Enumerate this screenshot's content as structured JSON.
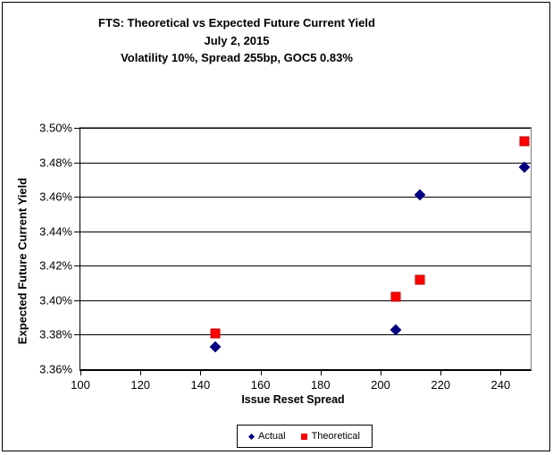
{
  "window": {
    "background": "#FFFFFF",
    "border_color": "#000000"
  },
  "chart_data": {
    "type": "scatter",
    "title": "FTS: Theoretical vs Expected Future Current Yield",
    "subtitle1": "July 2, 2015",
    "subtitle2": "Volatility 10%, Spread 255bp, GOC5 0.83%",
    "xlabel": "Issue Reset Spread",
    "ylabel": "Expected Future Current Yield",
    "xlim": [
      100,
      250
    ],
    "ylim": [
      3.36,
      3.5
    ],
    "grid": true,
    "legend_position": "bottom-center",
    "x_ticks": [
      {
        "value": 100,
        "label": "100"
      },
      {
        "value": 120,
        "label": "120"
      },
      {
        "value": 140,
        "label": "140"
      },
      {
        "value": 160,
        "label": "160"
      },
      {
        "value": 180,
        "label": "180"
      },
      {
        "value": 200,
        "label": "200"
      },
      {
        "value": 220,
        "label": "220"
      },
      {
        "value": 240,
        "label": "240"
      }
    ],
    "y_ticks": [
      {
        "value": 3.5,
        "label": "3.50%"
      },
      {
        "value": 3.48,
        "label": "3.48%"
      },
      {
        "value": 3.46,
        "label": "3.46%"
      },
      {
        "value": 3.44,
        "label": "3.44%"
      },
      {
        "value": 3.42,
        "label": "3.42%"
      },
      {
        "value": 3.4,
        "label": "3.40%"
      },
      {
        "value": 3.38,
        "label": "3.38%"
      },
      {
        "value": 3.36,
        "label": "3.36%"
      }
    ],
    "series": [
      {
        "name": "Actual",
        "marker": "diamond",
        "color": "#000080",
        "points": [
          {
            "x": 145,
            "y": 3.373
          },
          {
            "x": 205,
            "y": 3.383
          },
          {
            "x": 213,
            "y": 3.461
          },
          {
            "x": 248,
            "y": 3.477
          }
        ]
      },
      {
        "name": "Theoretical",
        "marker": "square",
        "color": "#FF0000",
        "points": [
          {
            "x": 145,
            "y": 3.381
          },
          {
            "x": 205,
            "y": 3.402
          },
          {
            "x": 213,
            "y": 3.412
          },
          {
            "x": 248,
            "y": 3.492
          }
        ]
      }
    ]
  }
}
